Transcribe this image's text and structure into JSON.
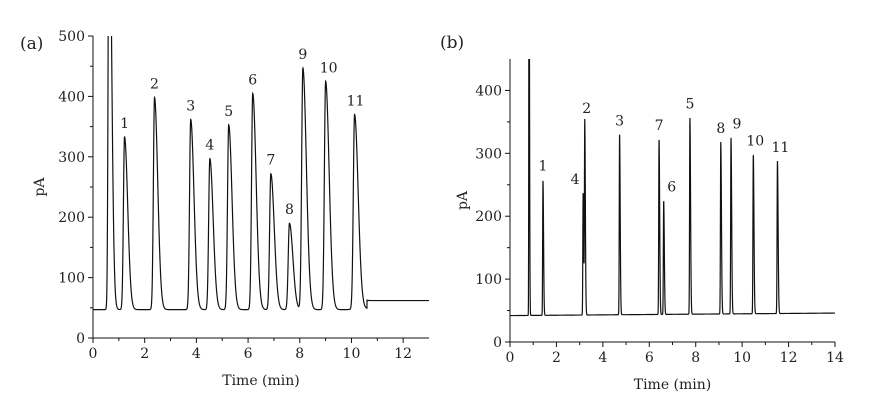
{
  "chart_data": [
    {
      "type": "line",
      "panel_label": "(a)",
      "xlabel": "Time (min)",
      "ylabel": "pA",
      "xlim": [
        0,
        13
      ],
      "ylim": [
        0,
        500
      ],
      "x_ticks": [
        0,
        2,
        4,
        6,
        8,
        10,
        12
      ],
      "y_ticks": [
        0,
        100,
        200,
        300,
        400,
        500
      ],
      "baseline": {
        "before": 47,
        "after": 62,
        "shift_time": 10.6
      },
      "solvent_peak": {
        "t": 0.62,
        "height": 500,
        "clipped": true
      },
      "peaks": [
        {
          "label": "1",
          "t": 1.22,
          "height": 333
        },
        {
          "label": "2",
          "t": 2.38,
          "height": 398
        },
        {
          "label": "3",
          "t": 3.78,
          "height": 362
        },
        {
          "label": "4",
          "t": 4.52,
          "height": 297
        },
        {
          "label": "5",
          "t": 5.25,
          "height": 353
        },
        {
          "label": "6",
          "t": 6.18,
          "height": 405
        },
        {
          "label": "7",
          "t": 6.88,
          "height": 272
        },
        {
          "label": "8",
          "t": 7.6,
          "height": 190
        },
        {
          "label": "9",
          "t": 8.12,
          "height": 447
        },
        {
          "label": "10",
          "t": 9.0,
          "height": 425
        },
        {
          "label": "11",
          "t": 10.12,
          "height": 370
        }
      ]
    },
    {
      "type": "line",
      "panel_label": "(b)",
      "xlabel": "Time (min)",
      "ylabel": "pA",
      "xlim": [
        0,
        14
      ],
      "ylim": [
        0,
        450
      ],
      "x_ticks": [
        0,
        2,
        4,
        6,
        8,
        10,
        12,
        14
      ],
      "y_ticks": [
        0,
        100,
        200,
        300,
        400
      ],
      "baseline": {
        "start": 42,
        "end": 46
      },
      "solvent_peak": {
        "t": 0.82,
        "height": 450,
        "clipped": true
      },
      "peaks": [
        {
          "label": "1",
          "t": 1.42,
          "height": 258
        },
        {
          "label": "4",
          "t": 3.15,
          "height": 237
        },
        {
          "label": "2",
          "t": 3.22,
          "height": 350
        },
        {
          "label": "3",
          "t": 4.72,
          "height": 330
        },
        {
          "label": "7",
          "t": 6.42,
          "height": 323
        },
        {
          "label": "6",
          "t": 6.62,
          "height": 225
        },
        {
          "label": "5",
          "t": 7.75,
          "height": 357
        },
        {
          "label": "8",
          "t": 9.08,
          "height": 318
        },
        {
          "label": "9",
          "t": 9.52,
          "height": 325
        },
        {
          "label": "10",
          "t": 10.48,
          "height": 298
        },
        {
          "label": "11",
          "t": 11.52,
          "height": 288
        }
      ]
    }
  ]
}
